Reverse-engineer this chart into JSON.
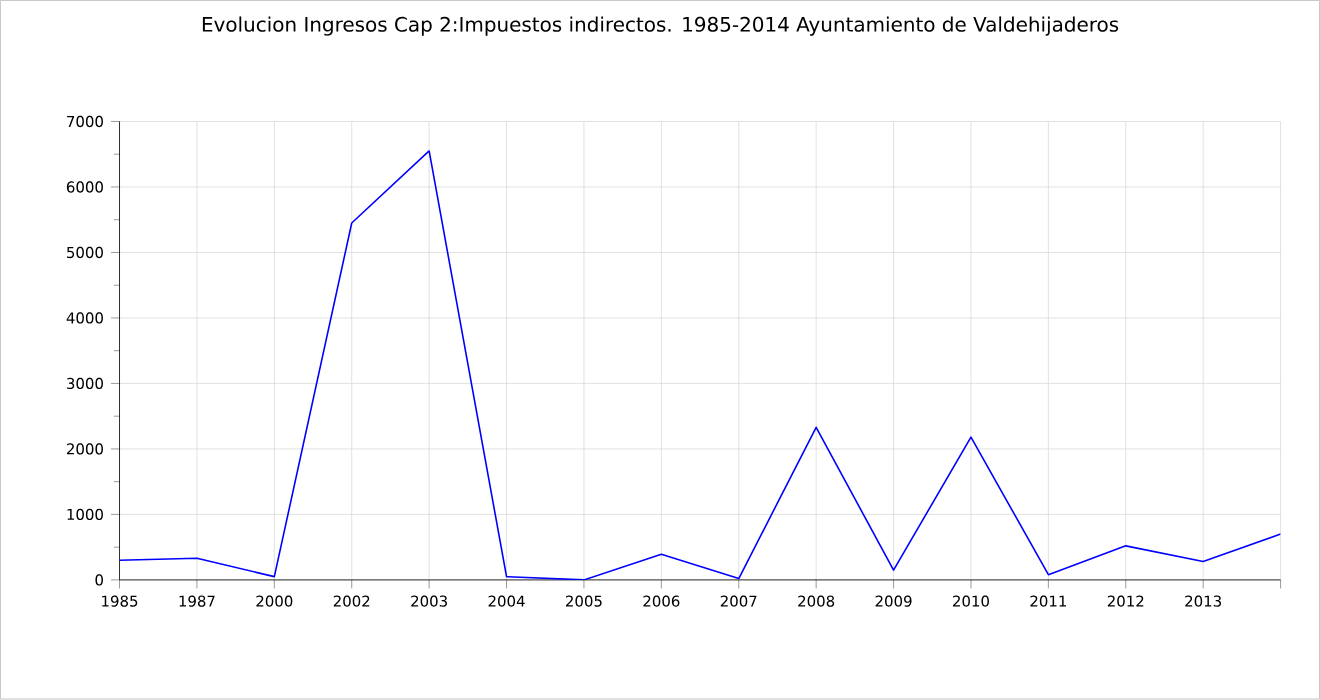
{
  "chart_data": {
    "type": "line",
    "title": "Evolucion Ingresos Cap 2:Impuestos indirectos. 1985-2014 Ayuntamiento de Valdehijaderos",
    "categories": [
      "1985",
      "1987",
      "2000",
      "2002",
      "2003",
      "2004",
      "2005",
      "2006",
      "2007",
      "2008",
      "2009",
      "2010",
      "2011",
      "2012",
      "2013",
      null
    ],
    "series": [
      {
        "color": "#0000ff",
        "values": [
          300,
          330,
          50,
          5450,
          6550,
          50,
          0,
          390,
          20,
          2330,
          150,
          2180,
          80,
          520,
          280,
          700
        ]
      }
    ],
    "ylim": [
      0,
      7000
    ],
    "yticks": [
      0,
      1000,
      2000,
      3000,
      4000,
      5000,
      6000,
      7000
    ],
    "grid": true,
    "legend": false,
    "marker": "none",
    "line_style": "solid"
  }
}
